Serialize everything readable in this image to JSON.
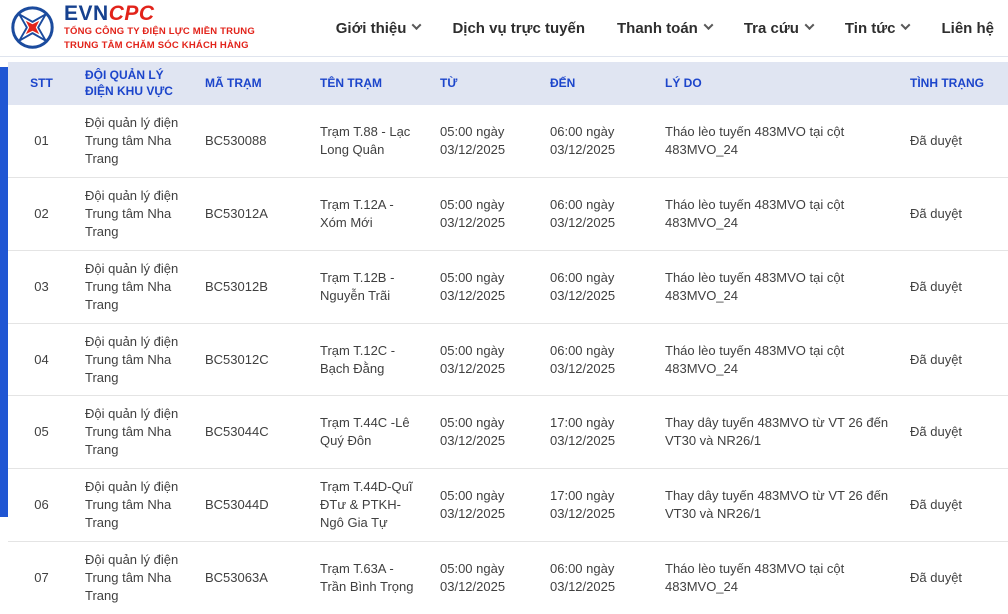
{
  "brand": {
    "logo_text_evn": "EVN",
    "logo_text_cpc": "CPC",
    "company_line1": "TỔNG CÔNG TY ĐIỆN LỰC MIỀN TRUNG",
    "company_line2": "TRUNG TÂM CHĂM SÓC KHÁCH HÀNG"
  },
  "nav": {
    "items": [
      {
        "label": "Giới thiệu",
        "has_dropdown": true
      },
      {
        "label": "Dịch vụ trực tuyến",
        "has_dropdown": false
      },
      {
        "label": "Thanh toán",
        "has_dropdown": true
      },
      {
        "label": "Tra cứu",
        "has_dropdown": true
      },
      {
        "label": "Tin tức",
        "has_dropdown": true
      },
      {
        "label": "Liên hệ",
        "has_dropdown": false
      }
    ]
  },
  "table": {
    "headers": [
      "STT",
      "ĐỘI QUẢN LÝ ĐIỆN KHU VỰC",
      "MÃ TRẠM",
      "TÊN TRẠM",
      "TỪ",
      "ĐẾN",
      "LÝ DO",
      "TÌNH TRẠNG"
    ],
    "rows": [
      [
        "01",
        "Đội quản lý điện Trung tâm Nha Trang",
        "BC530088",
        "Trạm T.88 - Lạc Long Quân",
        "05:00 ngày 03/12/2025",
        "06:00 ngày 03/12/2025",
        "Tháo lèo tuyến 483MVO tại cột 483MVO_24",
        "Đã duyệt"
      ],
      [
        "02",
        "Đội quản lý điện Trung tâm Nha Trang",
        "BC53012A",
        "Trạm T.12A -Xóm Mới",
        "05:00 ngày 03/12/2025",
        "06:00 ngày 03/12/2025",
        "Tháo lèo tuyến 483MVO tại cột 483MVO_24",
        "Đã duyệt"
      ],
      [
        "03",
        "Đội quản lý điện Trung tâm Nha Trang",
        "BC53012B",
        "Trạm T.12B - Nguyễn Trãi",
        "05:00 ngày 03/12/2025",
        "06:00 ngày 03/12/2025",
        "Tháo lèo tuyến 483MVO tại cột 483MVO_24",
        "Đã duyệt"
      ],
      [
        "04",
        "Đội quản lý điện Trung tâm Nha Trang",
        "BC53012C",
        "Trạm T.12C - Bạch Đằng",
        "05:00 ngày 03/12/2025",
        "06:00 ngày 03/12/2025",
        "Tháo lèo tuyến 483MVO tại cột 483MVO_24",
        "Đã duyệt"
      ],
      [
        "05",
        "Đội quản lý điện Trung tâm Nha Trang",
        "BC53044C",
        "Trạm T.44C -Lê Quý Đôn",
        "05:00 ngày 03/12/2025",
        "17:00 ngày 03/12/2025",
        "Thay dây tuyến 483MVO từ VT 26 đến VT30 và NR26/1",
        "Đã duyệt"
      ],
      [
        "06",
        "Đội quản lý điện Trung tâm Nha Trang",
        "BC53044D",
        "Trạm T.44D-Quĩ ĐTư & PTKH-Ngô Gia Tự",
        "05:00 ngày 03/12/2025",
        "17:00 ngày 03/12/2025",
        "Thay dây tuyến 483MVO từ VT 26 đến VT30 và NR26/1",
        "Đã duyệt"
      ],
      [
        "07",
        "Đội quản lý điện Trung tâm Nha Trang",
        "BC53063A",
        "Trạm T.63A - Trần Bình Trọng",
        "05:00 ngày 03/12/2025",
        "06:00 ngày 03/12/2025",
        "Tháo lèo tuyến 483MVO tại cột 483MVO_24",
        "Đã duyệt"
      ]
    ]
  },
  "colors": {
    "accent_bar": "#2056d3",
    "table_header_bg": "#e0e5f2",
    "table_header_text": "#1c45cb",
    "brand_blue": "#16418f",
    "brand_red": "#e2231a"
  }
}
